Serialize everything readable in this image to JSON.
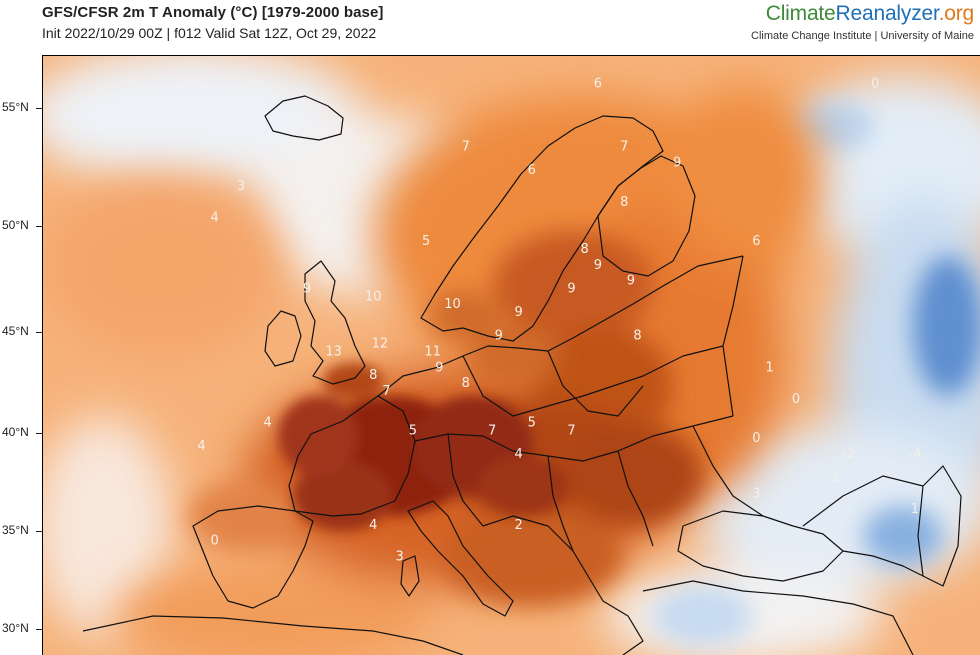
{
  "header": {
    "title": "GFS/CFSR 2m T Anomaly (°C) [1979-2000 base]",
    "subtitle": "Init 2022/10/29 00Z | f012 Valid Sat 12Z, Oct 29, 2022"
  },
  "brand": {
    "part1": "Climate",
    "part2": "Reanalyzer",
    "part3": ".org",
    "tagline": "Climate Change Institute | University of Maine",
    "colors": {
      "climate": "#3c8a3a",
      "reanalyzer": "#1f6fb8",
      "org": "#e0781c"
    }
  },
  "map": {
    "type": "temperature anomaly map",
    "unit": "°C",
    "lat_labels": [
      "55°N",
      "50°N",
      "45°N",
      "40°N",
      "35°N",
      "30°N"
    ],
    "anomaly_labels": [
      {
        "value": "13",
        "lon": 2,
        "lat": 47
      },
      {
        "value": "12",
        "lon": 5.5,
        "lat": 47.5
      },
      {
        "value": "11",
        "lon": 9.5,
        "lat": 47
      },
      {
        "value": "10",
        "lon": 5,
        "lat": 50.5
      },
      {
        "value": "10",
        "lon": 11,
        "lat": 50
      },
      {
        "value": "9",
        "lon": 0,
        "lat": 51
      },
      {
        "value": "9",
        "lon": 16,
        "lat": 49.5
      },
      {
        "value": "9",
        "lon": 14.5,
        "lat": 48
      },
      {
        "value": "9",
        "lon": 10,
        "lat": 46
      },
      {
        "value": "9",
        "lon": 20,
        "lat": 51
      },
      {
        "value": "9",
        "lon": 24.5,
        "lat": 51.5
      },
      {
        "value": "9",
        "lon": 22,
        "lat": 52.5
      },
      {
        "value": "9",
        "lon": 28,
        "lat": 59
      },
      {
        "value": "8",
        "lon": 5,
        "lat": 45.5
      },
      {
        "value": "8",
        "lon": 12,
        "lat": 45
      },
      {
        "value": "8",
        "lon": 21,
        "lat": 53.5
      },
      {
        "value": "8",
        "lon": 24,
        "lat": 56.5
      },
      {
        "value": "8",
        "lon": 25,
        "lat": 48
      },
      {
        "value": "7",
        "lon": 6,
        "lat": 44.5
      },
      {
        "value": "7",
        "lon": 14,
        "lat": 42
      },
      {
        "value": "7",
        "lon": 20,
        "lat": 42
      },
      {
        "value": "7",
        "lon": 12,
        "lat": 60
      },
      {
        "value": "7",
        "lon": 24,
        "lat": 60
      },
      {
        "value": "6",
        "lon": 17,
        "lat": 58.5
      },
      {
        "value": "6",
        "lon": 22,
        "lat": 64
      },
      {
        "value": "6",
        "lon": 34,
        "lat": 54
      },
      {
        "value": "5",
        "lon": 8,
        "lat": 42
      },
      {
        "value": "5",
        "lon": 17,
        "lat": 42.5
      },
      {
        "value": "5",
        "lon": 9,
        "lat": 54
      },
      {
        "value": "4",
        "lon": -8,
        "lat": 41
      },
      {
        "value": "4",
        "lon": -3,
        "lat": 42.5
      },
      {
        "value": "4",
        "lon": 16,
        "lat": 40.5
      },
      {
        "value": "4",
        "lon": 5,
        "lat": 36
      },
      {
        "value": "4",
        "lon": -7,
        "lat": 55.5
      },
      {
        "value": "3",
        "lon": -5,
        "lat": 57.5
      },
      {
        "value": "3",
        "lon": 7,
        "lat": 34
      },
      {
        "value": "3",
        "lon": 34,
        "lat": 38
      },
      {
        "value": "2",
        "lon": 16,
        "lat": 36
      },
      {
        "value": "1",
        "lon": 35,
        "lat": 46
      },
      {
        "value": "1",
        "lon": 40,
        "lat": 39
      },
      {
        "value": "1",
        "lon": 46,
        "lat": 37
      },
      {
        "value": "0",
        "lon": -7,
        "lat": 35
      },
      {
        "value": "0",
        "lon": 37,
        "lat": 44
      },
      {
        "value": "0",
        "lon": 34,
        "lat": 41.5
      },
      {
        "value": "0",
        "lon": 43,
        "lat": 64
      },
      {
        "value": "-2",
        "lon": 41,
        "lat": 40.5
      },
      {
        "value": "-4",
        "lon": 46,
        "lat": 40.5
      }
    ]
  }
}
